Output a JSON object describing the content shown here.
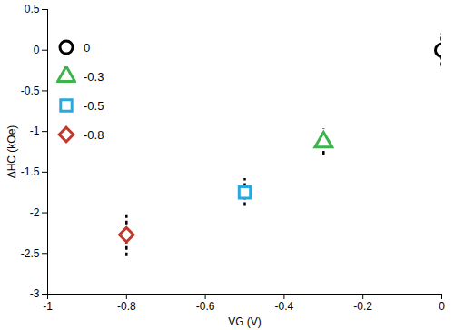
{
  "chart_data": {
    "type": "scatter",
    "x_label": "VG (V)",
    "y_label": "ΔHC (kOe)",
    "xlim": [
      -1,
      0
    ],
    "xticks": [
      -1,
      -0.8,
      -0.6,
      -0.4,
      -0.2,
      0
    ],
    "ylim": [
      -3,
      0.5
    ],
    "yticks": [
      -3,
      -2.5,
      -2,
      -1.5,
      -1,
      -0.5,
      0,
      0.5
    ],
    "grid": false,
    "legend": "top-left",
    "series": [
      {
        "name": "0",
        "color": "#000000",
        "marker": "circle",
        "x": [
          0
        ],
        "values": [
          0
        ],
        "errors": [
          0.2
        ]
      },
      {
        "name": "-0.3",
        "color": "#3cb44b",
        "marker": "triangle",
        "x": [
          -0.3
        ],
        "values": [
          -1.13
        ],
        "errors": [
          0.16
        ]
      },
      {
        "name": "-0.5",
        "color": "#29a8e0",
        "marker": "square",
        "x": [
          -0.5
        ],
        "values": [
          -1.75
        ],
        "errors": [
          0.17
        ]
      },
      {
        "name": "-0.8",
        "color": "#c0392b",
        "marker": "diamond",
        "x": [
          -0.8
        ],
        "values": [
          -2.27
        ],
        "errors": [
          0.27
        ]
      }
    ]
  }
}
